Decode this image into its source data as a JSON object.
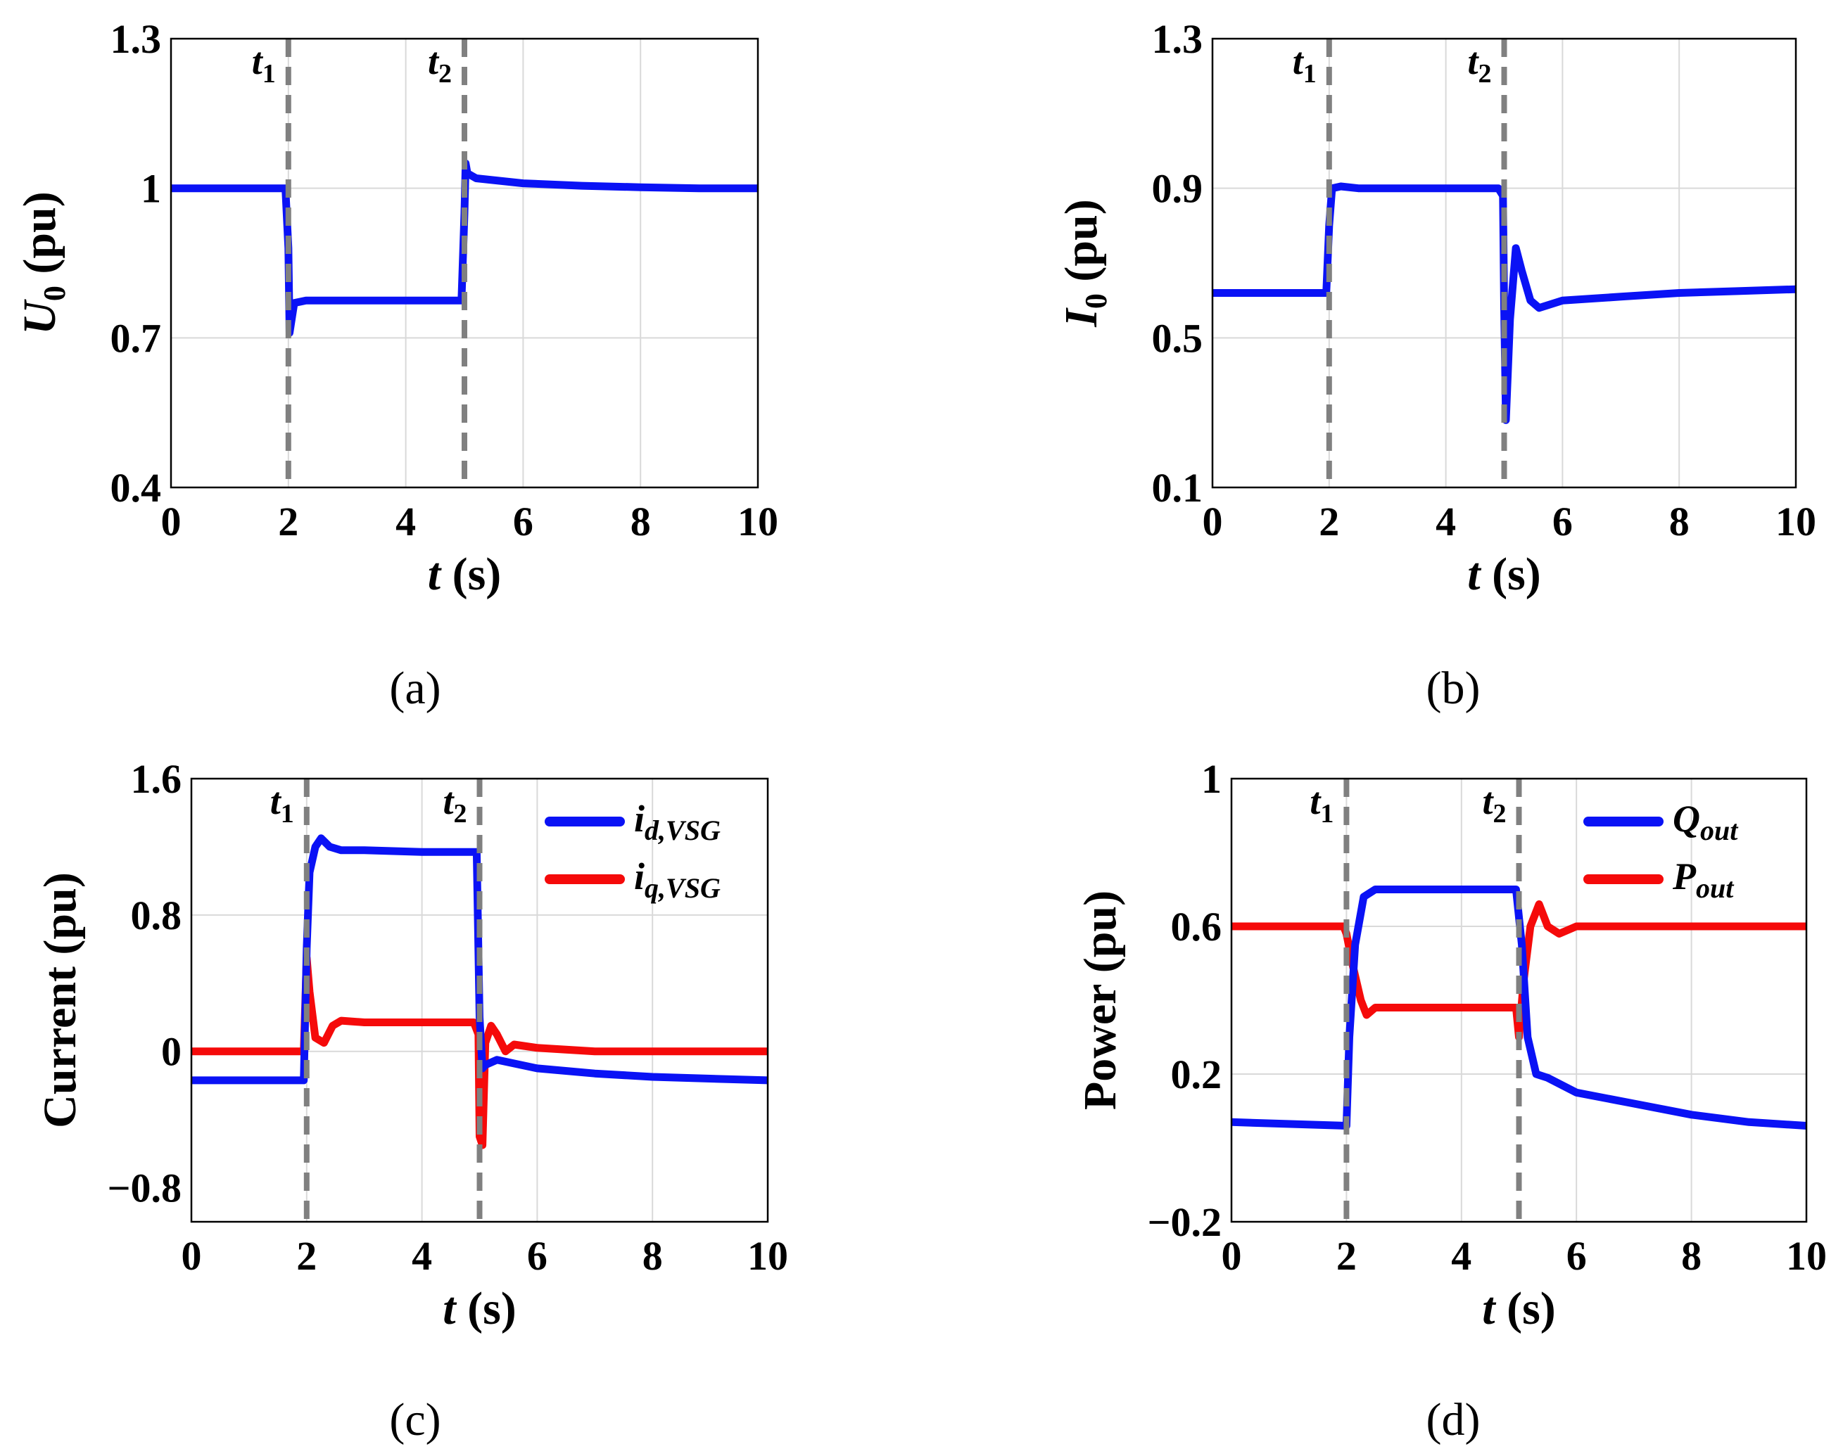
{
  "colors": {
    "blue": "#0a12f5",
    "red": "#f50a0a",
    "marker": "#808080",
    "grid": "#d9d9d9"
  },
  "chart_data": [
    {
      "id": "a",
      "type": "line",
      "caption": "(a)",
      "ylabel_main": "U",
      "ylabel_sub": "0",
      "ylabel_unit": " (pu)",
      "xlabel_main": "t",
      "xlabel_unit": " (s)",
      "xlim": [
        0,
        10
      ],
      "ylim": [
        0.4,
        1.3
      ],
      "xticks": [
        "0",
        "2",
        "4",
        "6",
        "8",
        "10"
      ],
      "xtick_values": [
        0,
        2,
        4,
        6,
        8,
        10
      ],
      "yticks": [
        "0.4",
        "0.7",
        "1",
        "1.3"
      ],
      "ytick_values": [
        0.4,
        0.7,
        1.0,
        1.3
      ],
      "markers": [
        {
          "label": "t",
          "sub": "1",
          "x": 2
        },
        {
          "label": "t",
          "sub": "2",
          "x": 5
        }
      ],
      "legend": [],
      "series": [
        {
          "name": "U0",
          "color": "blue",
          "x": [
            0,
            1.9,
            1.95,
            2.0,
            2.02,
            2.1,
            2.3,
            3,
            4,
            4.95,
            5.0,
            5.02,
            5.05,
            5.2,
            6,
            7,
            8,
            9,
            10
          ],
          "y": [
            1.0,
            1.0,
            1.0,
            0.88,
            0.71,
            0.77,
            0.775,
            0.775,
            0.775,
            0.775,
            0.95,
            1.05,
            1.03,
            1.02,
            1.01,
            1.005,
            1.002,
            1.0,
            1.0
          ]
        }
      ]
    },
    {
      "id": "b",
      "type": "line",
      "caption": "(b)",
      "ylabel_main": "I",
      "ylabel_sub": "0",
      "ylabel_unit": " (pu)",
      "xlabel_main": "t",
      "xlabel_unit": " (s)",
      "xlim": [
        0,
        10
      ],
      "ylim": [
        0.1,
        1.3
      ],
      "xticks": [
        "0",
        "2",
        "4",
        "6",
        "8",
        "10"
      ],
      "xtick_values": [
        0,
        2,
        4,
        6,
        8,
        10
      ],
      "yticks": [
        "0.1",
        "0.5",
        "0.9",
        "1.3"
      ],
      "ytick_values": [
        0.1,
        0.5,
        0.9,
        1.3
      ],
      "markers": [
        {
          "label": "t",
          "sub": "1",
          "x": 2
        },
        {
          "label": "t",
          "sub": "2",
          "x": 5
        }
      ],
      "legend": [],
      "series": [
        {
          "name": "I0",
          "color": "blue",
          "x": [
            0,
            1.95,
            2.0,
            2.05,
            2.2,
            2.5,
            3,
            4,
            4.9,
            4.98,
            5.0,
            5.03,
            5.1,
            5.2,
            5.3,
            5.45,
            5.6,
            6,
            7,
            8,
            9,
            10
          ],
          "y": [
            0.62,
            0.62,
            0.8,
            0.9,
            0.905,
            0.9,
            0.9,
            0.9,
            0.9,
            0.88,
            0.58,
            0.28,
            0.55,
            0.74,
            0.68,
            0.6,
            0.58,
            0.6,
            0.61,
            0.62,
            0.625,
            0.63
          ]
        }
      ]
    },
    {
      "id": "c",
      "type": "line",
      "caption": "(c)",
      "ylabel_main": "Current (pu)",
      "ylabel_sub": "",
      "ylabel_unit": "",
      "xlabel_main": "t",
      "xlabel_unit": " (s)",
      "xlim": [
        0,
        10
      ],
      "ylim": [
        -1.0,
        1.6
      ],
      "xticks": [
        "0",
        "2",
        "4",
        "6",
        "8",
        "10"
      ],
      "xtick_values": [
        0,
        2,
        4,
        6,
        8,
        10
      ],
      "yticks": [
        "−0.8",
        "0",
        "0.8",
        "1.6"
      ],
      "ytick_values": [
        -0.8,
        0.0,
        0.8,
        1.6
      ],
      "markers": [
        {
          "label": "t",
          "sub": "1",
          "x": 2
        },
        {
          "label": "t",
          "sub": "2",
          "x": 5
        }
      ],
      "legend": [
        {
          "main": "i",
          "sub": "d,VSG",
          "color": "blue"
        },
        {
          "main": "i",
          "sub": "q,VSG",
          "color": "red"
        }
      ],
      "series": [
        {
          "name": "id,VSG",
          "color": "blue",
          "x": [
            0,
            1.95,
            2.0,
            2.05,
            2.15,
            2.25,
            2.4,
            2.6,
            3,
            4,
            4.95,
            5.0,
            5.05,
            5.1,
            5.3,
            6,
            7,
            8,
            9,
            10
          ],
          "y": [
            -0.17,
            -0.17,
            0.6,
            1.05,
            1.2,
            1.25,
            1.2,
            1.18,
            1.18,
            1.17,
            1.17,
            0.2,
            -0.1,
            -0.08,
            -0.05,
            -0.1,
            -0.13,
            -0.15,
            -0.16,
            -0.17
          ]
        },
        {
          "name": "iq,VSG",
          "color": "red",
          "x": [
            0,
            1.95,
            2.0,
            2.05,
            2.15,
            2.3,
            2.45,
            2.6,
            3,
            4,
            4.9,
            4.98,
            5.0,
            5.05,
            5.1,
            5.2,
            5.3,
            5.45,
            5.6,
            6,
            7,
            8,
            10
          ],
          "y": [
            0.0,
            0.0,
            0.55,
            0.35,
            0.08,
            0.05,
            0.15,
            0.18,
            0.17,
            0.17,
            0.17,
            0.1,
            -0.5,
            -0.55,
            0.05,
            0.15,
            0.1,
            0.0,
            0.04,
            0.02,
            0.0,
            0.0,
            0.0
          ]
        }
      ]
    },
    {
      "id": "d",
      "type": "line",
      "caption": "(d)",
      "ylabel_main": "Power (pu)",
      "ylabel_sub": "",
      "ylabel_unit": "",
      "xlabel_main": "t",
      "xlabel_unit": " (s)",
      "xlim": [
        0,
        10
      ],
      "ylim": [
        -0.2,
        1.0
      ],
      "xticks": [
        "0",
        "2",
        "4",
        "6",
        "8",
        "10"
      ],
      "xtick_values": [
        0,
        2,
        4,
        6,
        8,
        10
      ],
      "yticks": [
        "−0.2",
        "0.2",
        "0.6",
        "1"
      ],
      "ytick_values": [
        -0.2,
        0.2,
        0.6,
        1.0
      ],
      "markers": [
        {
          "label": "t",
          "sub": "1",
          "x": 2
        },
        {
          "label": "t",
          "sub": "2",
          "x": 5
        }
      ],
      "legend": [
        {
          "main": "Q",
          "sub": "out",
          "color": "blue"
        },
        {
          "main": "P",
          "sub": "out",
          "color": "red"
        }
      ],
      "series": [
        {
          "name": "Qout",
          "color": "blue",
          "x": [
            0,
            2.0,
            2.05,
            2.15,
            2.3,
            2.5,
            3,
            4,
            4.95,
            5.05,
            5.15,
            5.3,
            5.5,
            6,
            7,
            8,
            9,
            10
          ],
          "y": [
            0.07,
            0.06,
            0.3,
            0.55,
            0.68,
            0.7,
            0.7,
            0.7,
            0.7,
            0.55,
            0.3,
            0.2,
            0.19,
            0.15,
            0.12,
            0.09,
            0.07,
            0.06
          ]
        },
        {
          "name": "Pout",
          "color": "red",
          "x": [
            0,
            1.95,
            2.0,
            2.1,
            2.25,
            2.35,
            2.5,
            3,
            4,
            4.95,
            5.0,
            5.08,
            5.2,
            5.35,
            5.5,
            5.7,
            6,
            7,
            8,
            10
          ],
          "y": [
            0.6,
            0.6,
            0.58,
            0.5,
            0.4,
            0.36,
            0.38,
            0.38,
            0.38,
            0.38,
            0.3,
            0.45,
            0.6,
            0.66,
            0.6,
            0.58,
            0.6,
            0.6,
            0.6,
            0.6
          ]
        }
      ]
    }
  ]
}
